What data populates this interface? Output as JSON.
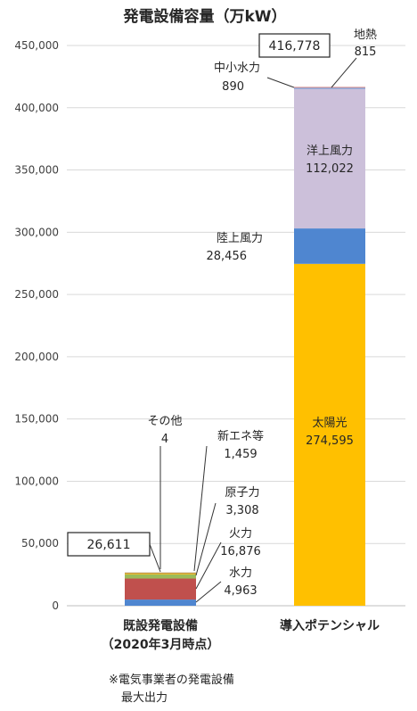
{
  "chart_data": {
    "type": "bar",
    "stacked": true,
    "title": "発電設備容量（万kW）",
    "ylim": [
      0,
      450000
    ],
    "yticks": [
      0,
      50000,
      100000,
      150000,
      200000,
      250000,
      300000,
      350000,
      400000,
      450000
    ],
    "ytick_labels": [
      "0",
      "50,000",
      "100,000",
      "150,000",
      "200,000",
      "250,000",
      "300,000",
      "350,000",
      "400,000",
      "450,000"
    ],
    "grid": true,
    "categories": [
      {
        "label": "既設発電設備",
        "sublabel": "（2020年3月時点）"
      },
      {
        "label": "導入ポテンシャル",
        "sublabel": ""
      }
    ],
    "totals": [
      {
        "label": "26,611",
        "value": 26611
      },
      {
        "label": "416,778",
        "value": 416778
      }
    ],
    "series": [
      {
        "name": "水力",
        "color": "#4f86d0",
        "values": [
          4963,
          null
        ],
        "value_labels": [
          "4,963",
          ""
        ]
      },
      {
        "name": "火力",
        "color": "#c0504d",
        "values": [
          16876,
          null
        ],
        "value_labels": [
          "16,876",
          ""
        ]
      },
      {
        "name": "原子力",
        "color": "#9bbb59",
        "values": [
          3308,
          null
        ],
        "value_labels": [
          "3,308",
          ""
        ]
      },
      {
        "name": "新エネ等",
        "color": "#f0b41e",
        "values": [
          1459,
          null
        ],
        "value_labels": [
          "1,459",
          ""
        ]
      },
      {
        "name": "その他",
        "color": "#7f7f7f",
        "values": [
          4,
          null
        ],
        "value_labels": [
          "4",
          ""
        ]
      },
      {
        "name": "太陽光",
        "color": "#ffc000",
        "values": [
          null,
          274595
        ],
        "value_labels": [
          "",
          "274,595"
        ]
      },
      {
        "name": "陸上風力",
        "color": "#4f86d0",
        "values": [
          null,
          28456
        ],
        "value_labels": [
          "",
          "28,456"
        ]
      },
      {
        "name": "洋上風力",
        "color": "#ccc0da",
        "values": [
          null,
          112022
        ],
        "value_labels": [
          "",
          "112,022"
        ]
      },
      {
        "name": "中小水力",
        "color": "#7b9fd8",
        "values": [
          null,
          890
        ],
        "value_labels": [
          "",
          "890"
        ]
      },
      {
        "name": "地熱",
        "color": "#d99694",
        "values": [
          null,
          815
        ],
        "value_labels": [
          "",
          "815"
        ]
      }
    ],
    "footnote": [
      "※電気事業者の発電設備",
      "最大出力"
    ]
  }
}
